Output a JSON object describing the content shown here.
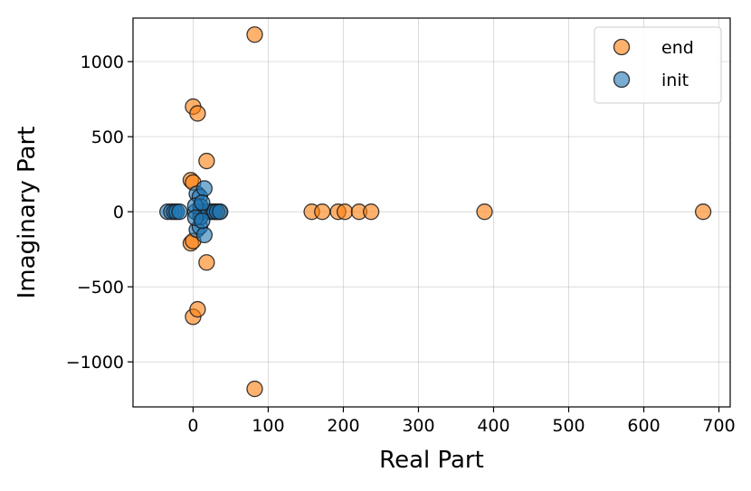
{
  "chart_data": {
    "type": "scatter",
    "title": "",
    "xlabel": "Real Part",
    "ylabel": "Imaginary Part",
    "xlim": [
      -80,
      715
    ],
    "ylim": [
      -1300,
      1290
    ],
    "xticks": [
      0,
      100,
      200,
      300,
      400,
      500,
      600,
      700
    ],
    "yticks": [
      -1000,
      -500,
      0,
      500,
      1000
    ],
    "xtick_labels": [
      "0",
      "100",
      "200",
      "300",
      "400",
      "500",
      "600",
      "700"
    ],
    "ytick_labels": [
      "−1000",
      "−500",
      "0",
      "500",
      "1000"
    ],
    "grid": true,
    "legend_position": "top-right",
    "series": [
      {
        "name": "end",
        "color": "#ff7f0e",
        "points": [
          {
            "x": 82,
            "y": 1180
          },
          {
            "x": 82,
            "y": -1180
          },
          {
            "x": 0,
            "y": 700
          },
          {
            "x": 0,
            "y": -700
          },
          {
            "x": 6,
            "y": 655
          },
          {
            "x": 6,
            "y": -650
          },
          {
            "x": 18,
            "y": 338
          },
          {
            "x": 18,
            "y": -338
          },
          {
            "x": -3,
            "y": 210
          },
          {
            "x": -3,
            "y": -210
          },
          {
            "x": 0,
            "y": 195
          },
          {
            "x": 0,
            "y": -195
          },
          {
            "x": 158,
            "y": 0
          },
          {
            "x": 172,
            "y": 0
          },
          {
            "x": 193,
            "y": 0
          },
          {
            "x": 202,
            "y": 0
          },
          {
            "x": 221,
            "y": 0
          },
          {
            "x": 237,
            "y": 0
          },
          {
            "x": 388,
            "y": 0
          },
          {
            "x": 679,
            "y": 0
          },
          {
            "x": 30,
            "y": 0
          },
          {
            "x": 35,
            "y": 0
          }
        ]
      },
      {
        "name": "init",
        "color": "#1f77b4",
        "points": [
          {
            "x": -34,
            "y": 0
          },
          {
            "x": -29,
            "y": 0
          },
          {
            "x": -25,
            "y": 0
          },
          {
            "x": -22,
            "y": 0
          },
          {
            "x": -18,
            "y": 0
          },
          {
            "x": 3,
            "y": 0
          },
          {
            "x": 10,
            "y": 0
          },
          {
            "x": 16,
            "y": 0
          },
          {
            "x": 22,
            "y": 0
          },
          {
            "x": 25,
            "y": 0
          },
          {
            "x": 28,
            "y": 0
          },
          {
            "x": 32,
            "y": 0
          },
          {
            "x": 36,
            "y": 0
          },
          {
            "x": 5,
            "y": 120
          },
          {
            "x": 5,
            "y": -120
          },
          {
            "x": 9,
            "y": 100
          },
          {
            "x": 9,
            "y": -100
          },
          {
            "x": 15,
            "y": 155
          },
          {
            "x": 15,
            "y": -155
          },
          {
            "x": 10,
            "y": 35
          },
          {
            "x": 10,
            "y": -35
          },
          {
            "x": 3,
            "y": 40
          },
          {
            "x": 3,
            "y": -40
          },
          {
            "x": 12,
            "y": 60
          },
          {
            "x": 12,
            "y": -60
          }
        ]
      }
    ]
  }
}
